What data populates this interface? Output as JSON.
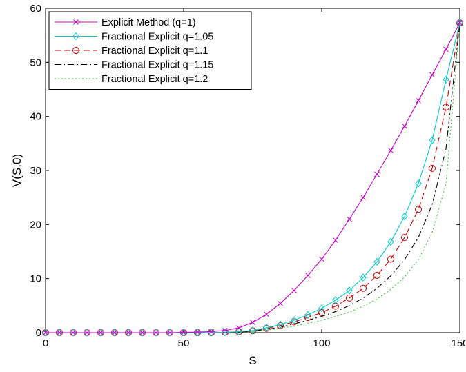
{
  "chart_data": {
    "type": "line",
    "xlabel": "S",
    "ylabel": "V(S,0)",
    "xlim": [
      0,
      150
    ],
    "ylim": [
      0,
      60
    ],
    "xticks": [
      "0",
      "50",
      "100",
      "150"
    ],
    "yticks": [
      "0",
      "10",
      "20",
      "30",
      "40",
      "50",
      "60"
    ],
    "grid": false,
    "legend_position": "top-left",
    "x": [
      0,
      5,
      10,
      15,
      20,
      25,
      30,
      35,
      40,
      45,
      50,
      55,
      60,
      65,
      70,
      75,
      80,
      85,
      90,
      95,
      100,
      105,
      110,
      115,
      120,
      125,
      130,
      135,
      140,
      145,
      150
    ],
    "series": [
      {
        "name": "Explicit Method (q=1)",
        "color": "#cc00cc",
        "marker": "x",
        "dash": "solid",
        "values": [
          0,
          0,
          0,
          0,
          0,
          0,
          0,
          0,
          0,
          0,
          0.05,
          0.1,
          0.2,
          0.4,
          0.9,
          1.9,
          3.4,
          5.4,
          7.8,
          10.6,
          13.6,
          17.1,
          21.0,
          25.0,
          29.3,
          33.7,
          38.2,
          42.9,
          47.7,
          52.4,
          57.3
        ]
      },
      {
        "name": "Fractional Explicit q=1.05",
        "color": "#00cccc",
        "marker": "diamond",
        "dash": "solid",
        "values": [
          0,
          0,
          0,
          0,
          0,
          0,
          0,
          0,
          0,
          0,
          0,
          0,
          0,
          0.05,
          0.2,
          0.4,
          0.9,
          1.5,
          2.3,
          3.3,
          4.5,
          6.0,
          7.8,
          10.2,
          13.1,
          16.8,
          21.5,
          27.6,
          35.6,
          46.8,
          57.3
        ]
      },
      {
        "name": "Fractional Explicit q=1.1",
        "color": "#cc0000",
        "marker": "circle",
        "dash": "dashed",
        "values": [
          0,
          0,
          0,
          0,
          0,
          0,
          0,
          0,
          0,
          0,
          0,
          0,
          0,
          0.05,
          0.15,
          0.35,
          0.8,
          1.3,
          2.0,
          2.8,
          3.7,
          4.9,
          6.4,
          8.2,
          10.6,
          13.6,
          17.6,
          22.8,
          30.4,
          41.7,
          57.3
        ]
      },
      {
        "name": "Fractional Explicit q=1.15",
        "color": "#000000",
        "marker": "none",
        "dash": "dashdot",
        "values": [
          0,
          0,
          0,
          0,
          0,
          0,
          0,
          0,
          0,
          0,
          0,
          0,
          0,
          0.03,
          0.1,
          0.3,
          0.6,
          1.0,
          1.6,
          2.3,
          3.0,
          3.9,
          5.0,
          6.4,
          8.2,
          10.5,
          13.5,
          17.6,
          23.7,
          34.0,
          57.3
        ]
      },
      {
        "name": "Fractional Explicit q=1.2",
        "color": "#33cc33",
        "marker": "none",
        "dash": "dotted",
        "values": [
          0,
          0,
          0,
          0,
          0,
          0,
          0,
          0,
          0,
          0,
          0,
          0,
          0,
          0.02,
          0.08,
          0.2,
          0.45,
          0.8,
          1.2,
          1.7,
          2.3,
          3.0,
          3.8,
          4.9,
          6.2,
          8.0,
          10.3,
          13.5,
          18.5,
          27.5,
          57.3
        ]
      }
    ]
  }
}
